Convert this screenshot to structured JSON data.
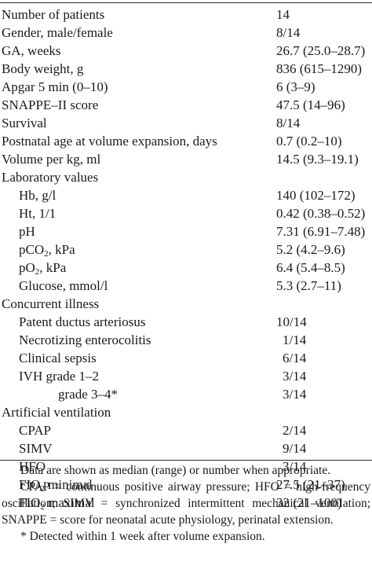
{
  "rows": [
    {
      "label": "Number of patients",
      "value": "14"
    },
    {
      "label": "Gender, male/female",
      "value": "8/14"
    },
    {
      "label": "GA, weeks",
      "value": "26.7 (25.0–28.7)"
    },
    {
      "label": "Body weight, g",
      "value": "836 (615–1290)"
    },
    {
      "label": "Apgar 5 min (0–10)",
      "value": "6 (3–9)"
    },
    {
      "label": "SNAPPE–II score",
      "value": "47.5 (14–96)"
    },
    {
      "label": "Survival",
      "value": "8/14"
    },
    {
      "label": "Postnatal age at volume expansion, days",
      "value": "0.7 (0.2–10)"
    },
    {
      "label": "Volume per kg, ml",
      "value": "14.5 (9.3–19.1)"
    },
    {
      "label": "Laboratory values",
      "value": ""
    },
    {
      "label": "Hb, g/l",
      "value": "140 (102–172)"
    },
    {
      "label": "Ht, 1/1",
      "value": "0.42 (0.38–0.52)"
    },
    {
      "label": "pH",
      "value": "7.31 (6.91–7.48)"
    },
    {
      "label_pre": "pCO",
      "label_sub": "2",
      "label_post": ", kPa",
      "value": "5.2 (4.2–9.6)"
    },
    {
      "label_pre": "pO",
      "label_sub": "2",
      "label_post": ", kPa",
      "value": "6.4 (5.4–8.5)"
    },
    {
      "label": "Glucose, mmol/l",
      "value": "5.3 (2.7–11)"
    },
    {
      "label": "Concurrent illness",
      "value": ""
    },
    {
      "label": "Patent ductus arteriosus",
      "value": "10/14"
    },
    {
      "label": "Necrotizing enterocolitis",
      "value": "1/14"
    },
    {
      "label": "Clinical sepsis",
      "value": "6/14"
    },
    {
      "label": "IVH grade 1–2",
      "value": "3/14"
    },
    {
      "label": "grade 3–4*",
      "value": "3/14"
    },
    {
      "label": "Artificial ventilation",
      "value": ""
    },
    {
      "label": "CPAP",
      "value": "2/14"
    },
    {
      "label": "SIMV",
      "value": "9/14"
    },
    {
      "label": "HFO",
      "value": "3/14"
    },
    {
      "label_pre": "FIO",
      "label_sub": "2",
      "label_post": " minimal",
      "value": "27.5 (21–37)"
    },
    {
      "label_pre": "FIO",
      "label_sub": "2",
      "label_post": " maximal",
      "value": "32 (21–100)"
    }
  ],
  "notes": {
    "line1": "Data are shown as median (range) or number when appropriate.",
    "line2": "CPAP = continuous positive airway pressure; HFO = high-frequency oscillation; SIMV = synchronized intermittent mechanical ventilation; SNAPPE = score for neonatal acute physiology, perinatal extension.",
    "line3": "* Detected within 1 week after volume expansion."
  }
}
